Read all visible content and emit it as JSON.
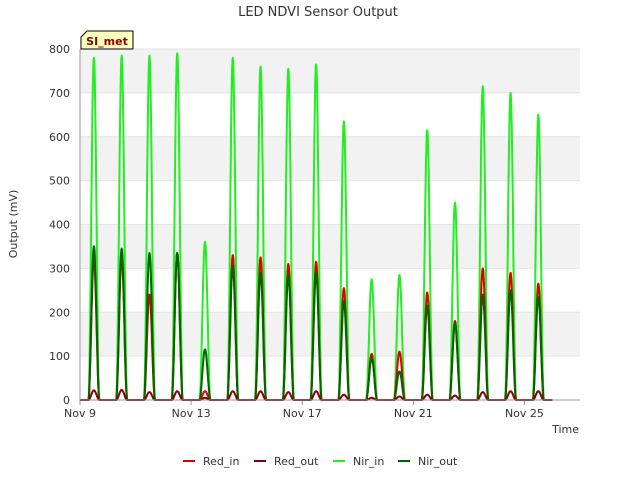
{
  "chart_data": {
    "type": "line",
    "title": "LED NDVI Sensor Output",
    "xlabel": "Time",
    "ylabel": "Output (mV)",
    "badge": "SI_met",
    "ylim": [
      0,
      800
    ],
    "yticks": [
      0,
      100,
      200,
      300,
      400,
      500,
      600,
      700,
      800
    ],
    "xlim": [
      "2023-11-09",
      "2023-11-27"
    ],
    "xticks": [
      {
        "date": "2023-11-09",
        "label": "Nov 9"
      },
      {
        "date": "2023-11-13",
        "label": "Nov 13"
      },
      {
        "date": "2023-11-17",
        "label": "Nov 17"
      },
      {
        "date": "2023-11-21",
        "label": "Nov 21"
      },
      {
        "date": "2023-11-25",
        "label": "Nov 25"
      }
    ],
    "grid": "horizontal bands",
    "legend_position": "bottom",
    "data_end": "2023-11-26",
    "daily_peak_dates": [
      "2023-11-09",
      "2023-11-10",
      "2023-11-11",
      "2023-11-12",
      "2023-11-13",
      "2023-11-14",
      "2023-11-15",
      "2023-11-16",
      "2023-11-17",
      "2023-11-18",
      "2023-11-19",
      "2023-11-20",
      "2023-11-21",
      "2023-11-22",
      "2023-11-23",
      "2023-11-24",
      "2023-11-25"
    ],
    "series": [
      {
        "name": "Red_in",
        "color": "#dd0000",
        "daily_peaks": [
          320,
          325,
          240,
          335,
          20,
          330,
          325,
          310,
          315,
          255,
          105,
          110,
          245,
          180,
          300,
          290,
          265
        ]
      },
      {
        "name": "Red_out",
        "color": "#880000",
        "daily_peaks": [
          22,
          23,
          18,
          20,
          5,
          20,
          20,
          18,
          20,
          12,
          5,
          8,
          12,
          10,
          18,
          20,
          20
        ]
      },
      {
        "name": "Nir_in",
        "color": "#22ee22",
        "daily_peaks": [
          780,
          785,
          785,
          790,
          360,
          780,
          760,
          755,
          765,
          635,
          275,
          285,
          615,
          450,
          715,
          700,
          650
        ]
      },
      {
        "name": "Nir_out",
        "color": "#006400",
        "daily_peaks": [
          350,
          345,
          335,
          335,
          115,
          305,
          290,
          285,
          290,
          225,
          95,
          65,
          215,
          175,
          240,
          250,
          235
        ]
      }
    ]
  }
}
